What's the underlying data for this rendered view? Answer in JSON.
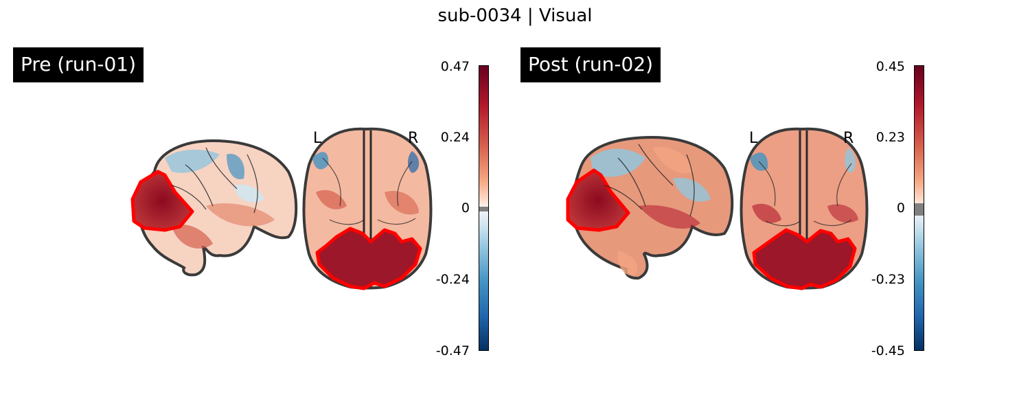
{
  "figure": {
    "title": "sub-0034 | Visual"
  },
  "panels": [
    {
      "label": "Pre (run-01)",
      "orientation": {
        "left": "L",
        "right": "R"
      },
      "colorbar": {
        "ticks": [
          "0.47",
          "0.24",
          "0",
          "-0.24",
          "-0.47"
        ],
        "vmin": -0.47,
        "vmax": 0.47
      }
    },
    {
      "label": "Post (run-02)",
      "orientation": {
        "left": "L",
        "right": "R"
      },
      "colorbar": {
        "ticks": [
          "0.45",
          "0.23",
          "0",
          "-0.23",
          "-0.45"
        ],
        "vmin": -0.45,
        "vmax": 0.45
      }
    }
  ],
  "colors": {
    "roi_outline": "#ff0000",
    "brain_outline": "#3a3a3a",
    "cmap_pos": "#67001f",
    "cmap_neg": "#053061",
    "threshold_band": "#808080"
  }
}
